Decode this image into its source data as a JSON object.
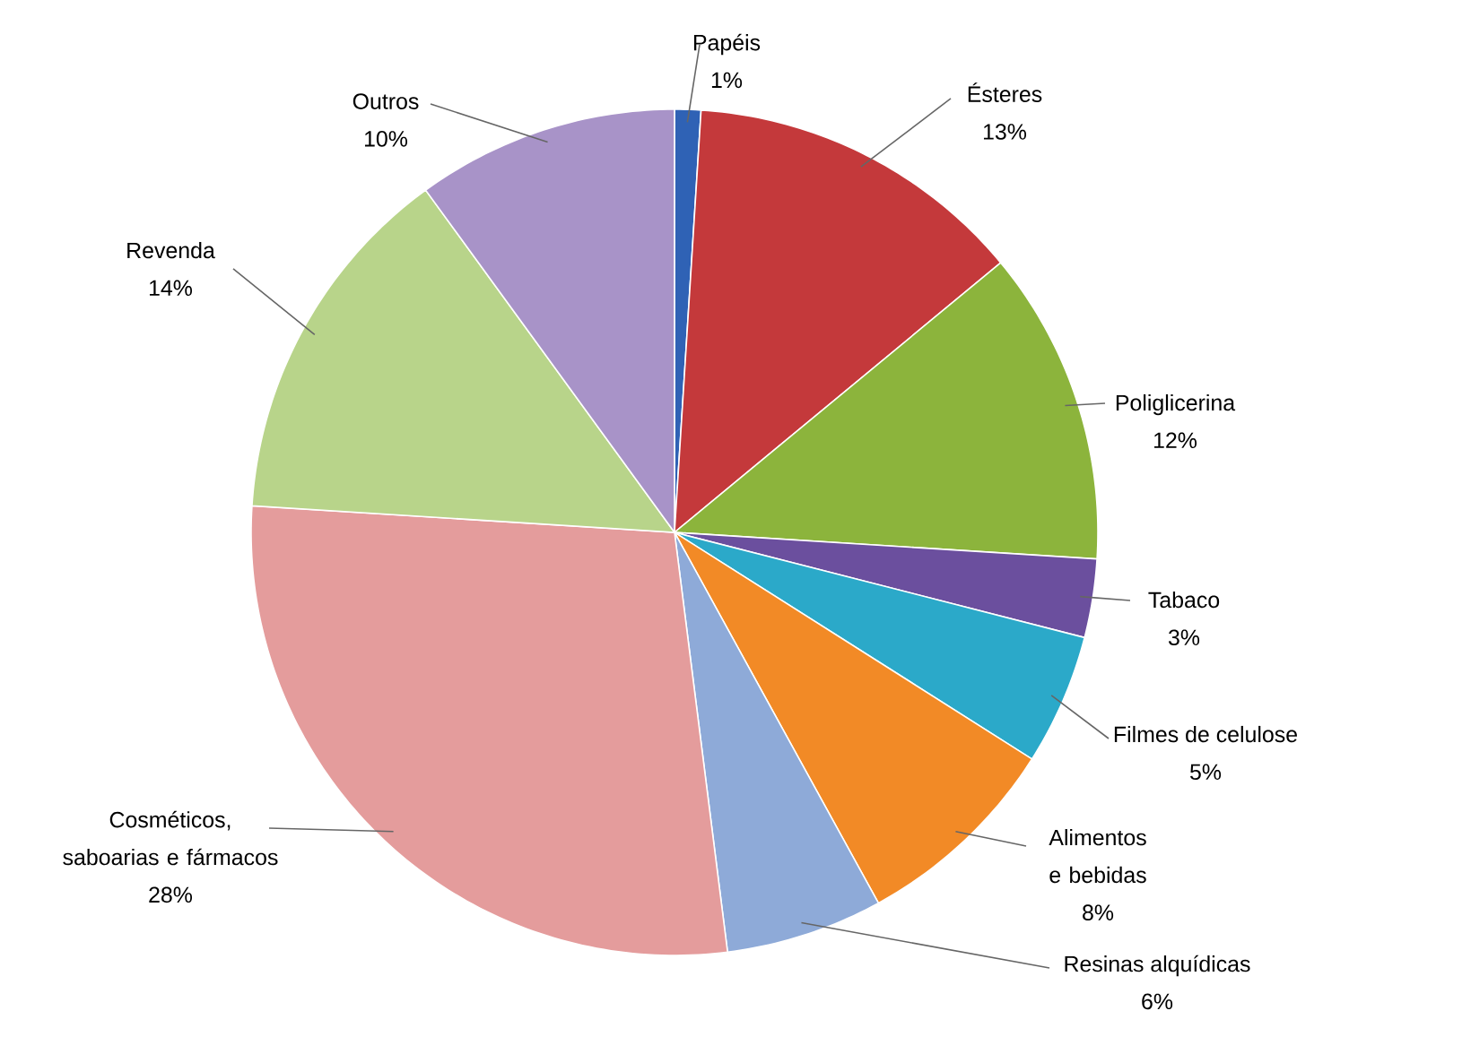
{
  "chart_data": {
    "type": "pie",
    "categories": [
      "Papéis",
      "Ésteres",
      "Poliglicerina",
      "Tabaco",
      "Filmes de celulose",
      "Alimentos e bebidas",
      "Resinas alquídicas",
      "Cosméticos, saboarias e fármacos",
      "Revenda",
      "Outros"
    ],
    "values": [
      1,
      13,
      12,
      3,
      5,
      8,
      6,
      28,
      14,
      10
    ],
    "value_labels": [
      "1%",
      "13%",
      "12%",
      "3%",
      "5%",
      "8%",
      "6%",
      "28%",
      "14%",
      "10%"
    ],
    "colors": [
      "#2f62b5",
      "#c4393b",
      "#8cb43c",
      "#6b4f9e",
      "#2ba9c9",
      "#f28a26",
      "#8eaad8",
      "#e49c9c",
      "#b8d48a",
      "#a893c8"
    ]
  }
}
